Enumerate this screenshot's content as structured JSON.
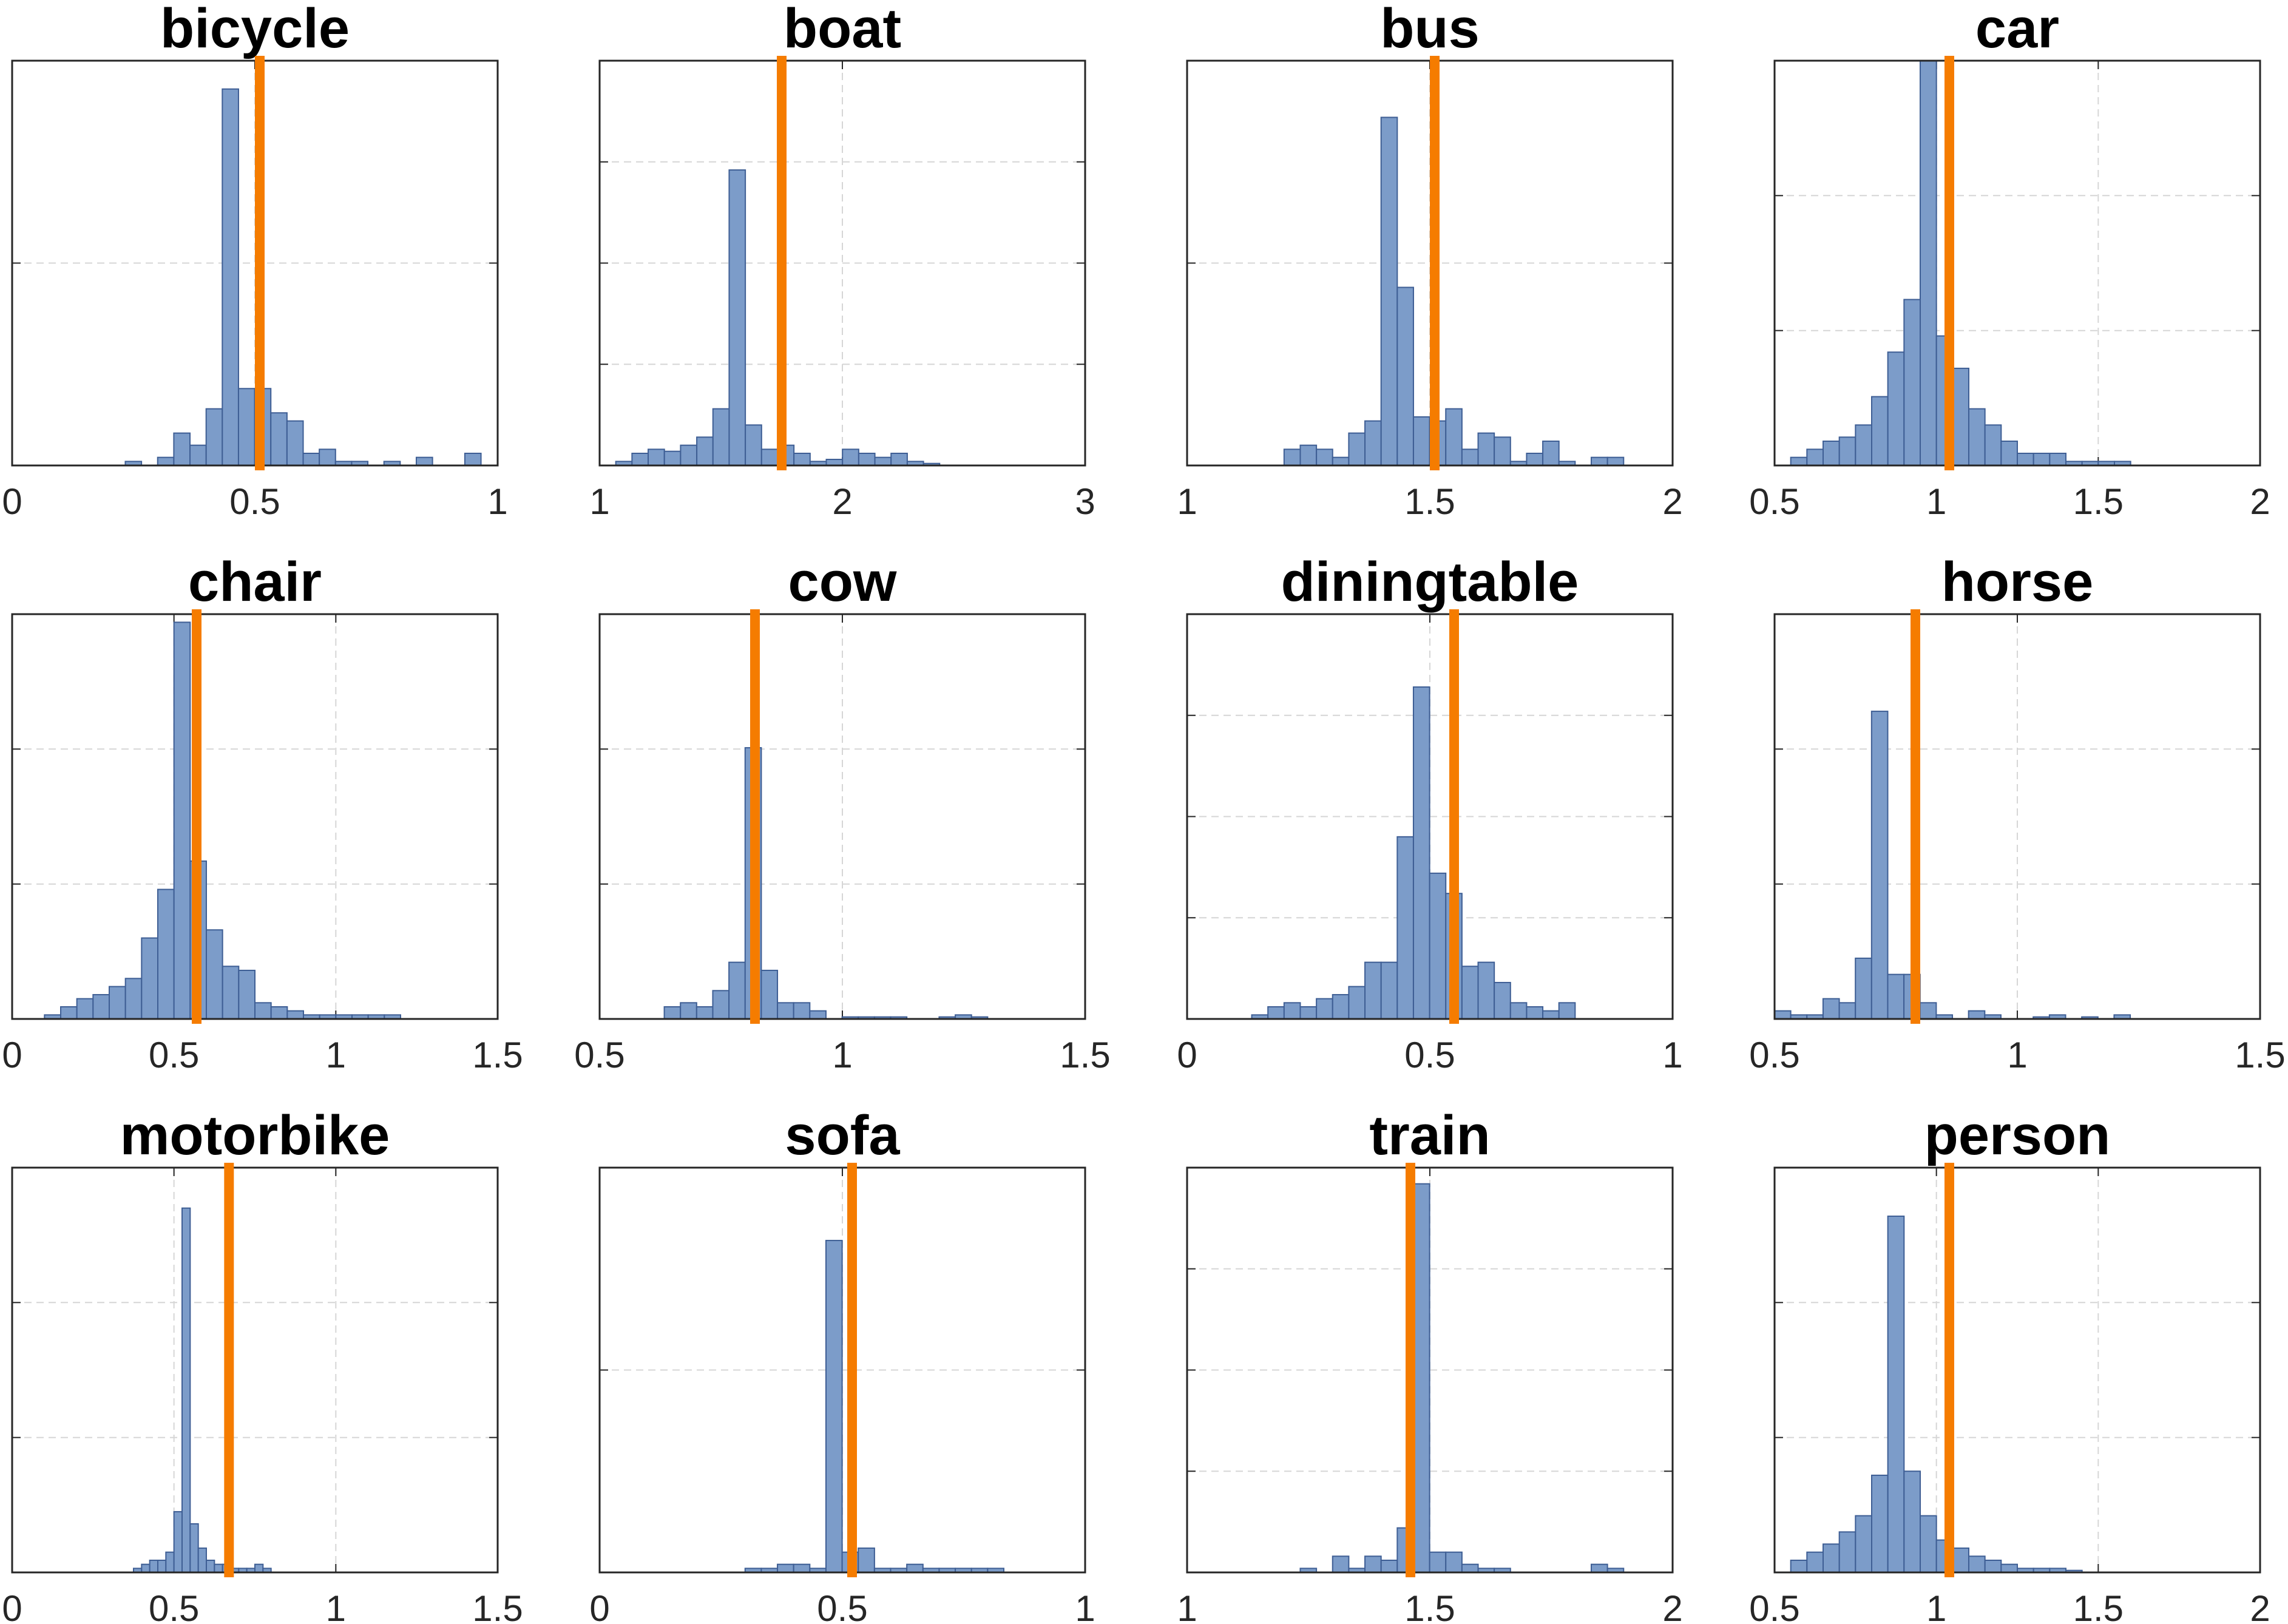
{
  "colors": {
    "bar_fill": "#7c9cc9",
    "bar_edge": "#3e5e94",
    "marker_line": "#f57c00",
    "axis": "#262626",
    "grid": "#d6d6d6"
  },
  "chart_data": [
    {
      "type": "bar",
      "title": "bicycle",
      "xlim": [
        0,
        1
      ],
      "ticks": [
        0,
        0.5,
        1
      ],
      "tick_labels": [
        "0",
        "0.5",
        "1"
      ],
      "ylim": [
        0,
        100
      ],
      "ygrid": [
        0,
        50,
        100
      ],
      "vline": 0.51,
      "bins": {
        "start": 0,
        "width": 0.0333,
        "counts": [
          0,
          0,
          0,
          0,
          0,
          0,
          0,
          1,
          0,
          2,
          8,
          5,
          14,
          93,
          19,
          19,
          13,
          11,
          3,
          4,
          1,
          1,
          0,
          1,
          0,
          2,
          0,
          0,
          3,
          0
        ]
      }
    },
    {
      "type": "bar",
      "title": "boat",
      "xlim": [
        1,
        3
      ],
      "ticks": [
        1,
        2,
        3
      ],
      "tick_labels": [
        "1",
        "2",
        "3"
      ],
      "ylim": [
        0,
        100
      ],
      "ygrid": [
        0,
        25,
        50,
        75,
        100
      ],
      "vline": 1.75,
      "bins": {
        "start": 1,
        "width": 0.0667,
        "counts": [
          0,
          1,
          3,
          4,
          3.5,
          5,
          7,
          14,
          73,
          10,
          4,
          5,
          3,
          1,
          1.5,
          4,
          3,
          2,
          3,
          1,
          0.5,
          0,
          0,
          0,
          0,
          0,
          0,
          0,
          0,
          0
        ]
      }
    },
    {
      "type": "bar",
      "title": "bus",
      "xlim": [
        1,
        2
      ],
      "ticks": [
        1,
        1.5,
        2
      ],
      "tick_labels": [
        "1",
        "1.5",
        "2"
      ],
      "ylim": [
        0,
        100
      ],
      "ygrid": [
        0,
        50,
        100
      ],
      "vline": 1.51,
      "bins": {
        "start": 1,
        "width": 0.0333,
        "counts": [
          0,
          0,
          0,
          0,
          0,
          0,
          4,
          5,
          4,
          2,
          8,
          11,
          86,
          44,
          12,
          11,
          14,
          4,
          8,
          7,
          1,
          3,
          6,
          1,
          0,
          2,
          2,
          0,
          0,
          0
        ]
      }
    },
    {
      "type": "bar",
      "title": "car",
      "xlim": [
        0.5,
        2
      ],
      "ticks": [
        0.5,
        1,
        1.5,
        2
      ],
      "tick_labels": [
        "0.5",
        "1",
        "1.5",
        "2"
      ],
      "ylim": [
        0,
        100
      ],
      "ygrid": [
        0,
        33.33,
        66.67,
        100
      ],
      "vline": 1.04,
      "bins": {
        "start": 0.5,
        "width": 0.05,
        "counts": [
          0,
          2,
          4,
          6,
          7,
          10,
          17,
          28,
          41,
          100,
          32,
          24,
          14,
          10,
          6,
          3,
          3,
          3,
          1,
          1,
          1,
          1,
          0,
          0,
          0,
          0,
          0,
          0,
          0,
          0
        ]
      }
    },
    {
      "type": "bar",
      "title": "chair",
      "xlim": [
        0,
        1.5
      ],
      "ticks": [
        0,
        0.5,
        1,
        1.5
      ],
      "tick_labels": [
        "0",
        "0.5",
        "1",
        "1.5"
      ],
      "ylim": [
        0,
        100
      ],
      "ygrid": [
        0,
        33.33,
        66.67,
        100
      ],
      "vline": 0.57,
      "bins": {
        "start": 0,
        "width": 0.05,
        "counts": [
          0,
          0,
          1,
          3,
          5,
          6,
          8,
          10,
          20,
          32,
          98,
          39,
          22,
          13,
          12,
          4,
          3,
          2,
          1,
          1,
          1,
          1,
          1,
          1,
          0,
          0,
          0,
          0,
          0,
          0
        ]
      }
    },
    {
      "type": "bar",
      "title": "cow",
      "xlim": [
        0.5,
        1.5
      ],
      "ticks": [
        0.5,
        1,
        1.5
      ],
      "tick_labels": [
        "0.5",
        "1",
        "1.5"
      ],
      "ylim": [
        0,
        100
      ],
      "ygrid": [
        0,
        33.33,
        66.67,
        100
      ],
      "vline": 0.82,
      "bins": {
        "start": 0.5,
        "width": 0.0333,
        "counts": [
          0,
          0,
          0,
          0,
          3,
          4,
          3,
          7,
          14,
          67,
          12,
          4,
          4,
          2,
          0,
          0.5,
          0.5,
          0.5,
          0.5,
          0,
          0,
          0.5,
          1,
          0.5,
          0,
          0,
          0,
          0,
          0,
          0
        ]
      }
    },
    {
      "type": "bar",
      "title": "diningtable",
      "xlim": [
        0,
        1
      ],
      "ticks": [
        0,
        0.5,
        1
      ],
      "tick_labels": [
        "0",
        "0.5",
        "1"
      ],
      "ylim": [
        0,
        100
      ],
      "ygrid": [
        0,
        25,
        50,
        75,
        100
      ],
      "vline": 0.55,
      "bins": {
        "start": 0,
        "width": 0.0333,
        "counts": [
          0,
          0,
          0,
          0,
          1,
          3,
          4,
          3,
          5,
          6,
          8,
          14,
          14,
          45,
          82,
          36,
          31,
          13,
          14,
          9,
          4,
          3,
          2,
          4,
          0,
          0,
          0,
          0,
          0,
          0
        ]
      }
    },
    {
      "type": "bar",
      "title": "horse",
      "xlim": [
        0.5,
        1.5
      ],
      "ticks": [
        0.5,
        1,
        1.5
      ],
      "tick_labels": [
        "0.5",
        "1",
        "1.5"
      ],
      "ylim": [
        0,
        100
      ],
      "ygrid": [
        0,
        33.33,
        66.67,
        100
      ],
      "vline": 0.79,
      "bins": {
        "start": 0.5,
        "width": 0.0333,
        "counts": [
          2,
          1,
          1,
          5,
          4,
          15,
          76,
          11,
          11,
          4,
          1,
          0,
          2,
          1,
          0,
          0,
          0.5,
          1,
          0,
          0.5,
          0,
          1,
          0,
          0,
          0,
          0,
          0,
          0,
          0,
          0
        ]
      }
    },
    {
      "type": "bar",
      "title": "motorbike",
      "xlim": [
        0,
        1.5
      ],
      "ticks": [
        0,
        0.5,
        1,
        1.5
      ],
      "tick_labels": [
        "0",
        "0.5",
        "1",
        "1.5"
      ],
      "ylim": [
        0,
        100
      ],
      "ygrid": [
        0,
        33.33,
        66.67,
        100
      ],
      "vline": 0.67,
      "bins": {
        "start": 0,
        "width": 0.025,
        "counts": [
          0,
          0,
          0,
          0,
          0,
          0,
          0,
          0,
          0,
          0,
          0,
          0,
          0,
          0,
          0,
          1,
          2,
          3,
          3,
          5,
          15,
          90,
          12,
          6,
          3,
          2,
          2,
          1,
          1,
          1,
          2,
          1,
          0,
          0,
          0,
          0,
          0,
          0,
          0,
          0
        ]
      }
    },
    {
      "type": "bar",
      "title": "sofa",
      "xlim": [
        0,
        1
      ],
      "ticks": [
        0,
        0.5,
        1
      ],
      "tick_labels": [
        "0",
        "0.5",
        "1"
      ],
      "ylim": [
        0,
        100
      ],
      "ygrid": [
        0,
        50,
        100
      ],
      "vline": 0.52,
      "bins": {
        "start": 0,
        "width": 0.0333,
        "counts": [
          0,
          0,
          0,
          0,
          0,
          0,
          0,
          0,
          0,
          1,
          1,
          2,
          2,
          1,
          82,
          5,
          6,
          1,
          1,
          2,
          1,
          1,
          1,
          1,
          1,
          0,
          0,
          0,
          0,
          0
        ]
      }
    },
    {
      "type": "bar",
      "title": "train",
      "xlim": [
        1,
        2
      ],
      "ticks": [
        1,
        1.5,
        2
      ],
      "tick_labels": [
        "1",
        "1.5",
        "2"
      ],
      "ylim": [
        0,
        100
      ],
      "ygrid": [
        0,
        25,
        50,
        75,
        100
      ],
      "vline": 1.46,
      "bins": {
        "start": 1,
        "width": 0.0333,
        "counts": [
          0,
          0,
          0,
          0,
          0,
          0,
          0,
          1,
          0,
          4,
          1,
          4,
          3,
          11,
          96,
          5,
          5,
          2,
          1,
          1,
          0,
          0,
          0,
          0,
          0,
          2,
          1,
          0,
          0,
          0
        ]
      }
    },
    {
      "type": "bar",
      "title": "person",
      "xlim": [
        0.5,
        2
      ],
      "ticks": [
        0.5,
        1,
        1.5,
        2
      ],
      "tick_labels": [
        "0.5",
        "1",
        "1.5",
        "2"
      ],
      "ylim": [
        0,
        100
      ],
      "ygrid": [
        0,
        33.33,
        66.67,
        100
      ],
      "vline": 1.04,
      "bins": {
        "start": 0.5,
        "width": 0.05,
        "counts": [
          0,
          3,
          5,
          7,
          10,
          14,
          24,
          88,
          25,
          14,
          8,
          6,
          4,
          3,
          2,
          1,
          1,
          1,
          0.5,
          0,
          0,
          0,
          0,
          0,
          0,
          0,
          0,
          0,
          0,
          0
        ]
      }
    }
  ]
}
